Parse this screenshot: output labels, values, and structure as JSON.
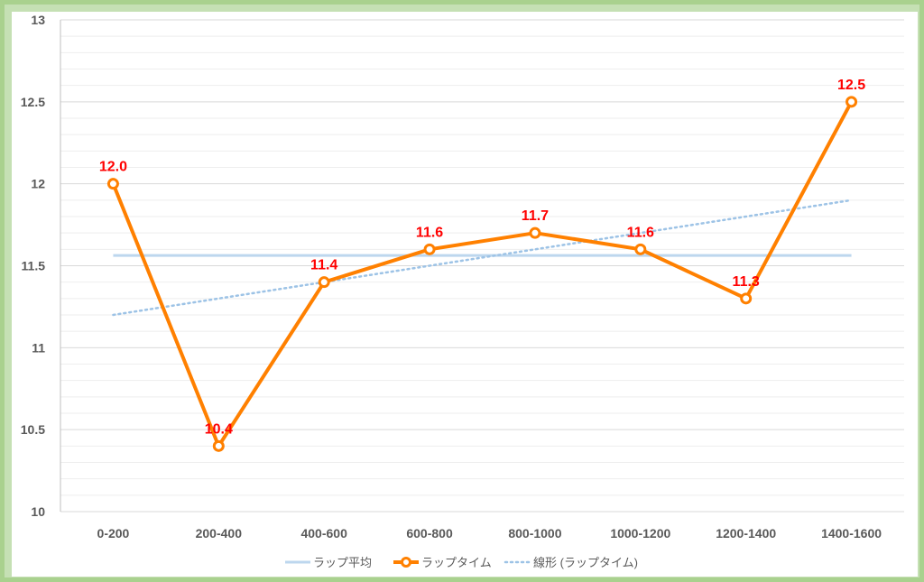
{
  "chart_data": {
    "type": "line",
    "title": "",
    "xlabel": "",
    "ylabel": "",
    "categories": [
      "0-200",
      "200-400",
      "400-600",
      "600-800",
      "800-1000",
      "1000-1200",
      "1200-1400",
      "1400-1600"
    ],
    "ylim": [
      10,
      13
    ],
    "yticks": [
      "10",
      "10.5",
      "11",
      "11.5",
      "12",
      "12.5",
      "13"
    ],
    "grid": true,
    "legend_position": "bottom",
    "series": [
      {
        "name": "ラップ平均",
        "kind": "flat-line",
        "values": [
          11.5625,
          11.5625,
          11.5625,
          11.5625,
          11.5625,
          11.5625,
          11.5625,
          11.5625
        ],
        "color": "#bdd7ee"
      },
      {
        "name": "ラップタイム",
        "kind": "line-with-markers",
        "values": [
          12.0,
          10.4,
          11.4,
          11.6,
          11.7,
          11.6,
          11.3,
          12.5
        ],
        "data_labels": [
          "12.0",
          "10.4",
          "11.4",
          "11.6",
          "11.7",
          "11.6",
          "11.3",
          "12.5"
        ],
        "color": "#ff8000",
        "label_color": "#ff0000"
      },
      {
        "name": "線形 (ラップタイム)",
        "kind": "linear-trendline",
        "values": [
          11.2,
          11.3,
          11.4,
          11.5,
          11.6,
          11.7,
          11.8,
          11.9
        ],
        "color": "#9dc3e6"
      }
    ]
  }
}
